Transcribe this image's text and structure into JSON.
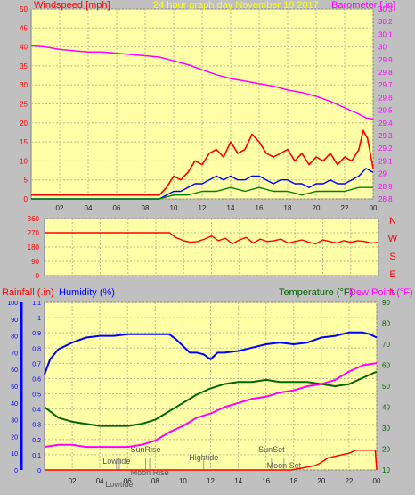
{
  "colors": {
    "background": "#c0c0c0",
    "plot_bg": "#ffffa8",
    "grid": "#bdbd90",
    "windspeed": "#ff0000",
    "gust": "#ff0000",
    "wind_avg": "#0000ff",
    "wind_min": "#008000",
    "barometer": "#ff00ff",
    "title": "#ffff00",
    "direction": "#ff0000",
    "rainfall": "#ff0000",
    "humidity": "#0000ff",
    "temperature": "#006400",
    "dewpoint": "#ff00ff",
    "tick_text": "#202020"
  },
  "chart_data": [
    {
      "type": "line",
      "title": "24 hour graph day   November 18 2017",
      "left_axis_label": "Windspeed [mph]",
      "right_axis_label": "Barometer [.in]",
      "x_ticks": [
        "02",
        "04",
        "06",
        "08",
        "10",
        "12",
        "14",
        "16",
        "18",
        "20",
        "22",
        "00"
      ],
      "x_range_hours": [
        0,
        24
      ],
      "ylim_left": [
        0,
        50
      ],
      "y_ticks_left": [
        "0",
        "5",
        "10",
        "15",
        "20",
        "25",
        "30",
        "35",
        "40",
        "45",
        "50"
      ],
      "ylim_right": [
        28.8,
        30.3
      ],
      "y_ticks_right": [
        "28.8",
        "28.9",
        "29",
        "29.1",
        "29.2",
        "29.3",
        "29.4",
        "29.5",
        "29.6",
        "29.7",
        "29.8",
        "29.9",
        "30",
        "30.1",
        "30.2",
        "30.3"
      ],
      "grid": true,
      "series": [
        {
          "key": "barometer",
          "axis": "right",
          "x": [
            0,
            1,
            2,
            3,
            4,
            5,
            6,
            7,
            8,
            9,
            10,
            11,
            12,
            13,
            14,
            15,
            16,
            17,
            18,
            19,
            20,
            21,
            22,
            23,
            23.5,
            24
          ],
          "y": [
            30.01,
            30.0,
            29.98,
            29.97,
            29.96,
            29.96,
            29.95,
            29.94,
            29.93,
            29.92,
            29.89,
            29.86,
            29.82,
            29.78,
            29.75,
            29.73,
            29.71,
            29.69,
            29.66,
            29.64,
            29.61,
            29.57,
            29.52,
            29.47,
            29.44,
            29.43
          ]
        },
        {
          "key": "wind_gust",
          "axis": "left",
          "x": [
            0,
            2,
            4,
            6,
            8,
            9,
            9.5,
            10,
            10.5,
            11,
            11.5,
            12,
            12.5,
            13,
            13.5,
            14,
            14.5,
            15,
            15.5,
            16,
            16.5,
            17,
            17.5,
            18,
            18.5,
            19,
            19.5,
            20,
            20.5,
            21,
            21.5,
            22,
            22.5,
            23,
            23.3,
            23.6,
            24
          ],
          "y": [
            1,
            1,
            1,
            1,
            1,
            1,
            3,
            6,
            5,
            7,
            10,
            9,
            12,
            13,
            11,
            15,
            12,
            13,
            17,
            15,
            12,
            11,
            12,
            13,
            10,
            12,
            9,
            11,
            10,
            12,
            9,
            11,
            10,
            13,
            18,
            16,
            8
          ]
        },
        {
          "key": "wind_avg",
          "axis": "left",
          "x": [
            0,
            2,
            4,
            6,
            8,
            9,
            9.5,
            10,
            10.5,
            11,
            11.5,
            12,
            12.5,
            13,
            13.5,
            14,
            14.5,
            15,
            15.5,
            16,
            16.5,
            17,
            17.5,
            18,
            18.5,
            19,
            19.5,
            20,
            20.5,
            21,
            21.5,
            22,
            22.5,
            23,
            23.5,
            24
          ],
          "y": [
            0,
            0,
            0,
            0,
            0,
            0,
            1,
            2,
            2,
            3,
            4,
            4,
            5,
            6,
            5,
            6,
            5,
            5,
            6,
            6,
            5,
            4,
            5,
            5,
            4,
            4,
            3,
            4,
            4,
            5,
            4,
            4,
            5,
            6,
            8,
            7
          ]
        },
        {
          "key": "wind_min",
          "axis": "left",
          "x": [
            0,
            9,
            10,
            11,
            12,
            13,
            14,
            15,
            16,
            17,
            18,
            19,
            20,
            21,
            22,
            23,
            24
          ],
          "y": [
            0,
            0,
            1,
            1,
            2,
            2,
            3,
            2,
            3,
            2,
            2,
            1,
            2,
            2,
            2,
            3,
            3
          ]
        }
      ]
    },
    {
      "type": "line",
      "right_axis_label": "N W S E N",
      "ylim": [
        0,
        360
      ],
      "y_ticks": [
        "0",
        "90",
        "180",
        "270",
        "360"
      ],
      "x_range_hours": [
        0,
        24
      ],
      "grid": true,
      "series": [
        {
          "key": "direction",
          "x": [
            0,
            1,
            2,
            3,
            4,
            5,
            6,
            7,
            8,
            9.0,
            9.4,
            10,
            10.5,
            11,
            11.5,
            12,
            12.5,
            13,
            13.5,
            14,
            14.5,
            15,
            15.5,
            16,
            16.5,
            17,
            17.5,
            18,
            18.5,
            19,
            19.5,
            20,
            20.5,
            21,
            21.5,
            22,
            22.5,
            23,
            23.5,
            24
          ],
          "y": [
            270,
            270,
            270,
            270,
            270,
            270,
            270,
            270,
            270,
            270,
            240,
            220,
            210,
            215,
            230,
            250,
            220,
            235,
            200,
            225,
            240,
            205,
            230,
            215,
            220,
            230,
            205,
            215,
            225,
            210,
            200,
            225,
            215,
            205,
            220,
            210,
            220,
            215,
            205,
            210
          ]
        }
      ]
    },
    {
      "type": "line",
      "left_axis_label_1": "Rainfall (.in)",
      "left_axis_label_2": "Humidity (%)",
      "right_axis_label_1": "Temperature (°F)",
      "right_axis_label_2": "Dew Point (°F)",
      "x_ticks": [
        "02",
        "04",
        "06",
        "08",
        "10",
        "12",
        "14",
        "16",
        "18",
        "20",
        "22",
        "00"
      ],
      "x_range_hours": [
        0,
        24
      ],
      "humidity_ticks": [
        "0",
        "10",
        "20",
        "30",
        "40",
        "50",
        "60",
        "70",
        "80",
        "90",
        "100"
      ],
      "rain_ticks": [
        "0",
        "0.1",
        "0.2",
        "0.3",
        "0.4",
        "0.5",
        "0.6",
        "0.7",
        "0.8",
        "0.9",
        "1",
        "1.1"
      ],
      "temp_ticks": [
        "10",
        "20",
        "30",
        "40",
        "50",
        "60",
        "70",
        "80",
        "90"
      ],
      "ylim_humidity": [
        0,
        100
      ],
      "ylim_rain": [
        0,
        1.1
      ],
      "ylim_temp": [
        10,
        90
      ],
      "grid": true,
      "series": [
        {
          "key": "humidity",
          "axis": "humidity",
          "x": [
            0,
            0.4,
            1,
            1.5,
            2,
            3,
            4,
            5,
            6,
            7,
            8,
            9,
            9.5,
            10,
            10.5,
            11,
            11.5,
            12,
            12.5,
            13,
            14,
            15,
            16,
            17,
            18,
            19,
            20,
            21,
            22,
            23,
            23.5,
            24
          ],
          "y": [
            57,
            66,
            72,
            74,
            76,
            79,
            80,
            80,
            81,
            81,
            81,
            81,
            78,
            74,
            70,
            70,
            69,
            66,
            70,
            70,
            71,
            73,
            75,
            76,
            75,
            76,
            79,
            80,
            82,
            82,
            81,
            79
          ]
        },
        {
          "key": "temperature",
          "axis": "temp",
          "x": [
            0,
            1,
            2,
            3,
            4,
            5,
            6,
            7,
            8,
            9,
            10,
            11,
            12,
            13,
            14,
            15,
            16,
            17,
            18,
            19,
            20,
            21,
            22,
            23,
            24
          ],
          "y": [
            40,
            35,
            33,
            32,
            31,
            31,
            31,
            32,
            34,
            38,
            42,
            46,
            49,
            51,
            52,
            52,
            53,
            52,
            52,
            52,
            51,
            50,
            51,
            54,
            57
          ]
        },
        {
          "key": "dewpoint",
          "axis": "temp",
          "x": [
            0,
            1,
            2,
            3,
            4,
            5,
            6,
            7,
            8,
            9,
            10,
            11,
            12,
            13,
            14,
            15,
            16,
            17,
            18,
            19,
            20,
            21,
            22,
            23,
            24
          ],
          "y": [
            21,
            22,
            22,
            21,
            21,
            21,
            21,
            22,
            24,
            28,
            31,
            35,
            37,
            40,
            42,
            44,
            45,
            47,
            48,
            50,
            51,
            53,
            57,
            60,
            61
          ]
        },
        {
          "key": "rainfall",
          "axis": "rain",
          "x": [
            0,
            17.8,
            18.5,
            19,
            19.6,
            20,
            20.5,
            21,
            21.5,
            22,
            22.5,
            23,
            23.9,
            24
          ],
          "y": [
            0,
            0,
            0.01,
            0.02,
            0.03,
            0.05,
            0.08,
            0.09,
            0.1,
            0.11,
            0.13,
            0.13,
            0.13,
            0
          ]
        }
      ],
      "annotations": [
        {
          "label": "SunRise",
          "hour": 7.3
        },
        {
          "label": "Lowtide",
          "hour": 5.2
        },
        {
          "label": "Moon Rise",
          "hour": 7.6
        },
        {
          "label": "Lowtide",
          "hour": 5.4
        },
        {
          "label": "Hightide",
          "hour": 11.5
        },
        {
          "label": "SunSet",
          "hour": 16.4
        },
        {
          "label": "Moon Set",
          "hour": 17.3
        }
      ]
    }
  ]
}
